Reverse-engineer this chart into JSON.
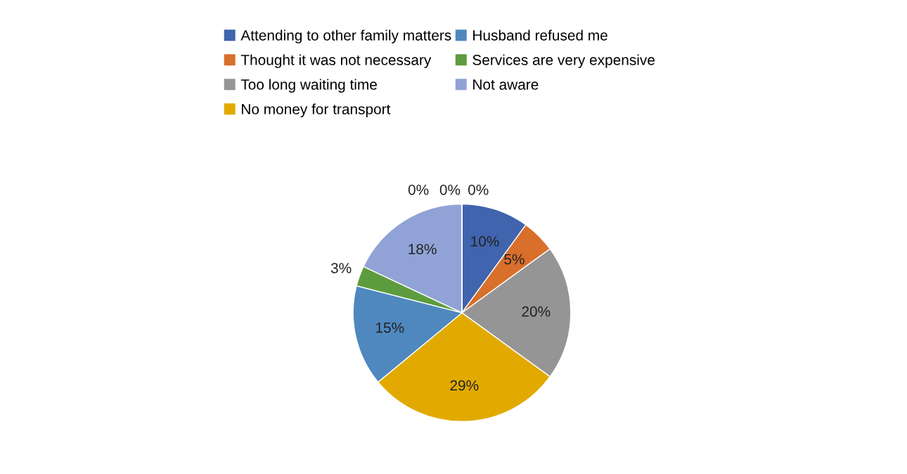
{
  "chart_data": {
    "type": "pie",
    "categories": [
      "Attending to other family matters",
      "Thought it was not necessary",
      "Too long waiting time",
      "No money for transport",
      "Husband refused me",
      "Services are very expensive",
      "Not aware",
      null,
      null,
      null
    ],
    "values": [
      10,
      5,
      20,
      29,
      15,
      3,
      18,
      0,
      0,
      0
    ],
    "colors": [
      "#4064ad",
      "#d86f2b",
      "#959595",
      "#e2aa00",
      "#4f88bf",
      "#5d9c3e",
      "#91a3d6",
      "#264478",
      "#9e480e",
      "#636363"
    ],
    "value_labels": [
      "10%",
      "5%",
      "20%",
      "29%",
      "15%",
      "3%",
      "18%",
      "0%",
      "0%",
      "0%"
    ],
    "legend": "top"
  }
}
